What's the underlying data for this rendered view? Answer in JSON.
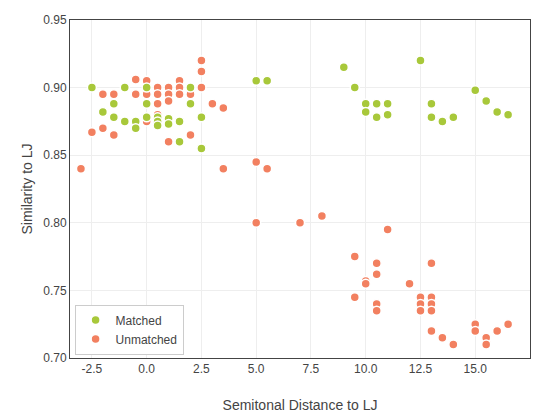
{
  "chart_data": {
    "type": "scatter",
    "x_label": "Semitonal Distance to LJ",
    "y_label": "Similarity to LJ",
    "series": [
      {
        "name": "Matched",
        "color": "#a8c83a",
        "marker": "circle",
        "x": [
          -2.5,
          -2.0,
          -1.5,
          -1.5,
          -1.0,
          -1.0,
          -0.5,
          -0.5,
          0.0,
          0.0,
          0.0,
          0.5,
          0.5,
          0.5,
          1.0,
          1.0,
          1.5,
          1.5,
          2.0,
          2.0,
          2.5,
          2.5,
          5.0,
          5.5,
          9.0,
          9.5,
          10.0,
          10.0,
          10.5,
          10.5,
          11.0,
          11.0,
          12.5,
          13.0,
          13.0,
          13.5,
          14.0,
          15.0,
          15.5,
          16.0,
          16.5
        ],
        "values": [
          0.9,
          0.882,
          0.888,
          0.878,
          0.9,
          0.875,
          0.875,
          0.87,
          0.9,
          0.888,
          0.878,
          0.878,
          0.875,
          0.872,
          0.877,
          0.873,
          0.875,
          0.86,
          0.9,
          0.888,
          0.855,
          0.878,
          0.905,
          0.905,
          0.915,
          0.9,
          0.888,
          0.882,
          0.888,
          0.878,
          0.888,
          0.88,
          0.92,
          0.888,
          0.878,
          0.875,
          0.878,
          0.898,
          0.89,
          0.882,
          0.88
        ]
      },
      {
        "name": "Unmatched",
        "color": "#f28060",
        "marker": "circle",
        "x": [
          -3.0,
          -2.5,
          -2.0,
          -2.0,
          -1.5,
          -1.5,
          -0.5,
          -0.5,
          -0.5,
          0.0,
          0.0,
          0.0,
          0.0,
          0.5,
          0.5,
          0.5,
          0.5,
          1.0,
          1.0,
          1.0,
          1.0,
          1.5,
          1.5,
          1.5,
          2.0,
          2.0,
          2.0,
          2.5,
          2.5,
          2.5,
          3.0,
          3.5,
          3.5,
          5.0,
          5.0,
          5.5,
          7.0,
          7.0,
          8.0,
          9.5,
          9.5,
          10.0,
          10.0,
          10.5,
          10.5,
          10.5,
          10.5,
          11.0,
          12.0,
          12.5,
          12.5,
          12.5,
          13.0,
          13.0,
          13.0,
          13.0,
          13.0,
          13.5,
          14.0,
          15.0,
          15.0,
          15.5,
          15.5,
          16.0,
          16.5
        ],
        "values": [
          0.84,
          0.867,
          0.895,
          0.87,
          0.895,
          0.865,
          0.906,
          0.895,
          0.87,
          0.905,
          0.895,
          0.888,
          0.875,
          0.9,
          0.895,
          0.888,
          0.88,
          0.9,
          0.895,
          0.89,
          0.86,
          0.905,
          0.9,
          0.895,
          0.9,
          0.895,
          0.865,
          0.92,
          0.912,
          0.9,
          0.888,
          0.885,
          0.84,
          0.845,
          0.8,
          0.84,
          0.8,
          0.8,
          0.805,
          0.775,
          0.745,
          0.757,
          0.755,
          0.77,
          0.762,
          0.74,
          0.735,
          0.795,
          0.755,
          0.745,
          0.74,
          0.735,
          0.77,
          0.745,
          0.74,
          0.735,
          0.72,
          0.715,
          0.71,
          0.725,
          0.72,
          0.715,
          0.71,
          0.72,
          0.725
        ]
      }
    ],
    "xlim": [
      -3.5,
      17.5
    ],
    "ylim": [
      0.7,
      0.95
    ],
    "xticks": [
      -2.5,
      {
        "value": 0.0,
        "label": "0.0"
      },
      2.5,
      {
        "value": 5.0,
        "label": "5.0"
      },
      7.5,
      {
        "value": 10.0,
        "label": "10.0"
      },
      12.5,
      {
        "value": 15.0,
        "label": "15.0"
      }
    ],
    "yticks": [
      {
        "value": 0.7,
        "label": "0.70"
      },
      0.75,
      {
        "value": 0.8,
        "label": "0.80"
      },
      0.85,
      {
        "value": 0.9,
        "label": "0.90"
      },
      0.95
    ],
    "grid": true,
    "legend": "lower left"
  }
}
